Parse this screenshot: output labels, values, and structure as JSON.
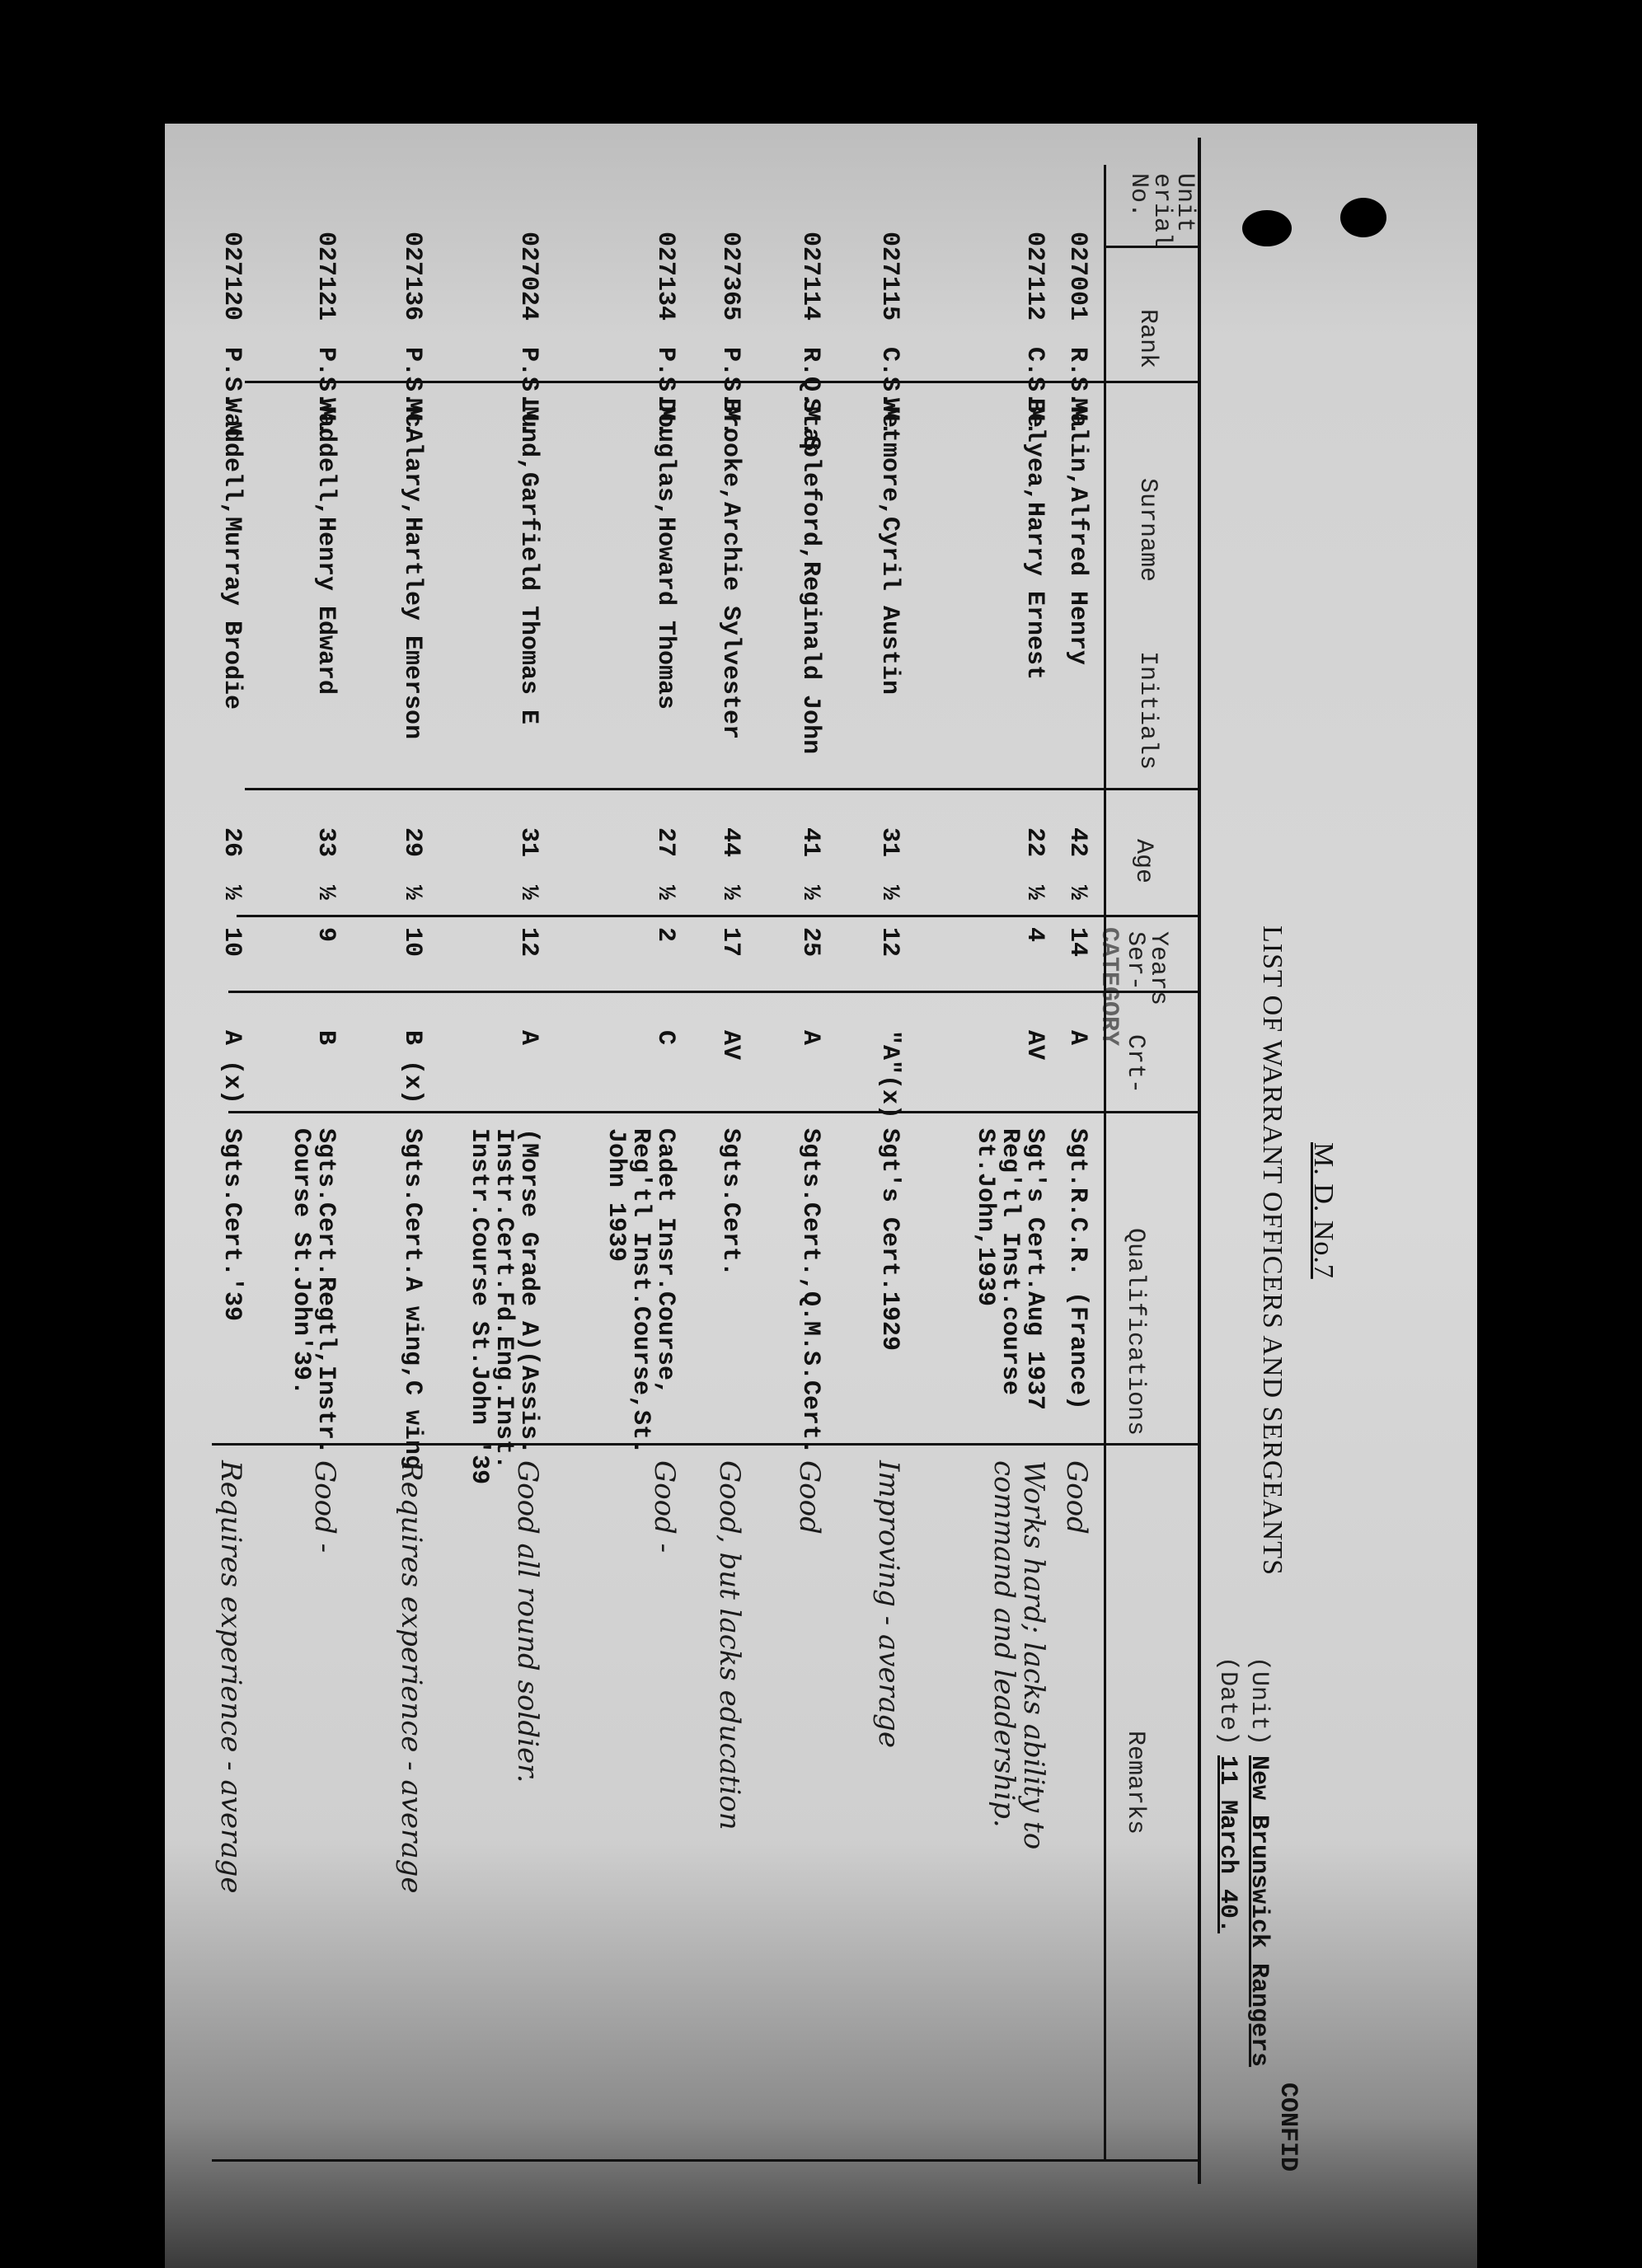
{
  "header": {
    "district": "M. D. No.7",
    "title": "LIST OF WARRANT OFFICERS AND SERGEANTS",
    "unit_label": "(Unit)",
    "unit_value": "New Brunswick Rangers",
    "date_label": "(Date)",
    "date_value": "11 March 40.",
    "classification": "CONFID"
  },
  "columns": {
    "serial": [
      "Unit",
      "erial",
      "No."
    ],
    "rank": "Rank",
    "surname": "Surname",
    "initials": "Initials",
    "age": "Age",
    "years": [
      "Years",
      "Ser-"
    ],
    "category": "Crt-",
    "category_overprint": "CATEGORY",
    "qualifications": "Qualifications",
    "remarks": "Remarks"
  },
  "rows": [
    {
      "serial": "027001",
      "rank": "R.S.M.",
      "name": "Malin,Alfred Henry",
      "age": "42",
      "half": "½",
      "years": "14",
      "category": "A",
      "qualifications": [
        "Sgt.R.C.R. (France)"
      ],
      "remarks": [
        "Good"
      ]
    },
    {
      "serial": "027112",
      "rank": "C.S.M.",
      "name": "Belyea,Harry Ernest",
      "age": "22",
      "half": "½",
      "years": "4",
      "category": "AV",
      "qualifications": [
        "Sgt's Cert.Aug 1937",
        "Reg'tl Inst.course",
        "St.John,1939"
      ],
      "remarks": [
        "Works hard; lacks ability to",
        "command and leadership."
      ]
    },
    {
      "serial": "027115",
      "rank": "C.S.M.",
      "name": "Wetmore,Cyril Austin",
      "age": "31",
      "half": "½",
      "years": "12",
      "category": "\"A\"(x)",
      "qualifications": [
        "Sgt's Cert.1929"
      ],
      "remarks": [
        "Improving - average"
      ]
    },
    {
      "serial": "027114",
      "rank": "R.Q.M.S",
      "name": "Stapleford,Reginald John",
      "age": "41",
      "half": "½",
      "years": "25",
      "category": "A",
      "qualifications": [
        "Sgts.Cert.,Q.M.S.Cert."
      ],
      "remarks": [
        "Good"
      ]
    },
    {
      "serial": "027365",
      "rank": "P.S.M.",
      "name": "Brooke,Archie Sylvester",
      "age": "44",
      "half": "½",
      "years": "17",
      "category": "AV",
      "qualifications": [
        "Sgts.Cert."
      ],
      "remarks": [
        "Good, but lacks education"
      ]
    },
    {
      "serial": "027134",
      "rank": "P.S.M.",
      "name": "Douglas,Howard Thomas",
      "age": "27",
      "half": "½",
      "years": "2",
      "category": "C",
      "qualifications": [
        "Cadet Insr.Course,",
        "Reg'tl Inst.Course,St.",
        "John 1939"
      ],
      "remarks": [
        "Good -"
      ]
    },
    {
      "serial": "027024",
      "rank": "P.S.M.",
      "name": "Lund,Garfield Thomas E",
      "age": "31",
      "half": "½",
      "years": "12",
      "category": "A",
      "qualifications": [
        "(Morse Grade A)(Assis.",
        "Instr.Cert.Fd.Eng.Inst.",
        "Instr.Course St.John '39"
      ],
      "remarks": [
        "Good all round soldier."
      ]
    },
    {
      "serial": "027136",
      "rank": "P.S.M.",
      "name": "McAlary,Hartley Emerson",
      "age": "29",
      "half": "½",
      "years": "10",
      "category": "B (x)",
      "qualifications": [
        "Sgts.Cert.A wing,C wing"
      ],
      "remarks": [
        "Requires experience - average"
      ]
    },
    {
      "serial": "027121",
      "rank": "P.S.M.",
      "name": "Waddell,Henry Edward",
      "age": "33",
      "half": "½",
      "years": "9",
      "category": "B",
      "qualifications": [
        "Sgts.Cert.Regtl,Instr.",
        "Course St.John'39."
      ],
      "remarks": [
        "Good -"
      ]
    },
    {
      "serial": "027120",
      "rank": "P.S. M",
      "name": "Waddell,Murray Brodie",
      "age": "26",
      "half": "½",
      "years": "10",
      "category": "A (x)",
      "qualifications": [
        "Sgts.Cert.'39"
      ],
      "remarks": [
        "Requires experience - average"
      ]
    }
  ]
}
